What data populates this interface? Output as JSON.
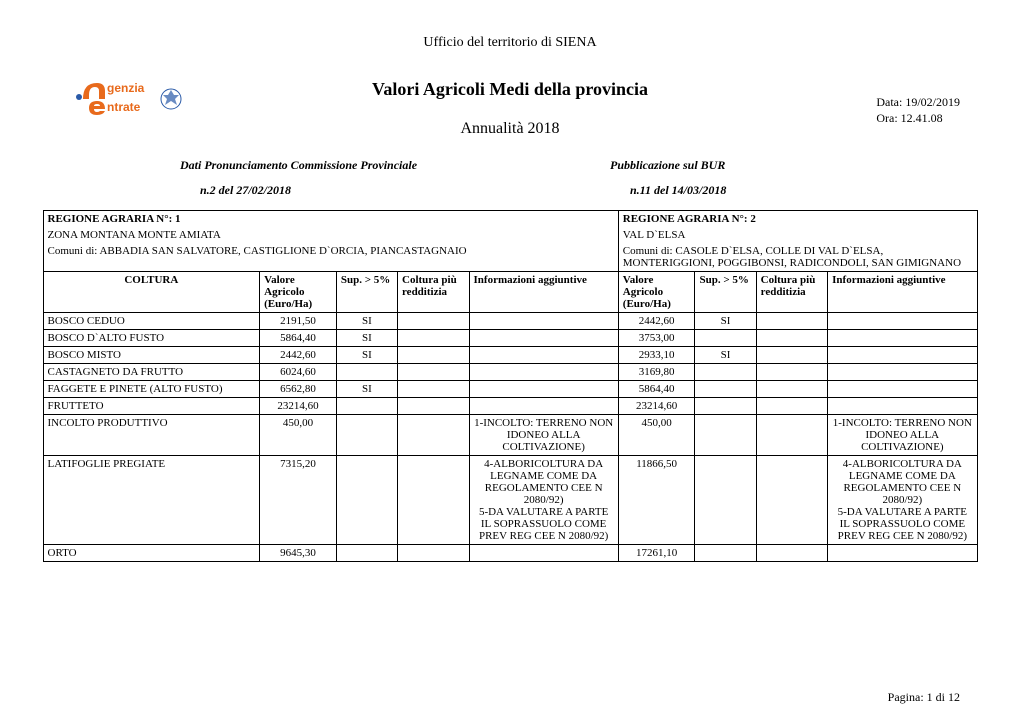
{
  "header": {
    "office": "Ufficio del territorio di  SIENA",
    "title": "Valori Agricoli Medi della provincia",
    "subtitle": "Annualità  2018",
    "date": "Data: 19/02/2019",
    "time": "Ora: 12.41.08"
  },
  "logo": {
    "text_top": "genzia",
    "text_bottom": "ntrate",
    "text_color": "#e86a1c",
    "emblem_color": "#2a5aa8"
  },
  "meta": {
    "left_label": "Dati Pronunciamento Commissione Provinciale",
    "left_value": "n.2 del  27/02/2018",
    "right_label": "Pubblicazione sul BUR",
    "right_value": "n.11  del 14/03/2018"
  },
  "region1": {
    "title": "REGIONE AGRARIA N°:  1",
    "zone": " ZONA MONTANA MONTE AMIATA",
    "comuni": "Comuni di: ABBADIA SAN SALVATORE, CASTIGLIONE D`ORCIA, PIANCASTAGNAIO"
  },
  "region2": {
    "title": "REGIONE AGRARIA N°: 2",
    "zone": " VAL D`ELSA",
    "comuni": "Comuni di: CASOLE D`ELSA, COLLE DI VAL D`ELSA, MONTERIGGIONI, POGGIBONSI, RADICONDOLI, SAN GIMIGNANO"
  },
  "columns": {
    "coltura": "COLTURA",
    "valore": "Valore Agricolo (Euro/Ha)",
    "sup": "Sup. > 5%",
    "redditizia": "Coltura più redditizia",
    "info": "Informazioni aggiuntive"
  },
  "rows": [
    {
      "coltura": "BOSCO CEDUO",
      "v1": "2191,50",
      "s1": "SI",
      "r1": "",
      "i1": "",
      "v2": "2442,60",
      "s2": "SI",
      "r2": "",
      "i2": ""
    },
    {
      "coltura": "BOSCO D`ALTO FUSTO",
      "v1": "5864,40",
      "s1": "SI",
      "r1": "",
      "i1": "",
      "v2": "3753,00",
      "s2": "",
      "r2": "",
      "i2": ""
    },
    {
      "coltura": "BOSCO MISTO",
      "v1": "2442,60",
      "s1": "SI",
      "r1": "",
      "i1": "",
      "v2": "2933,10",
      "s2": "SI",
      "r2": "",
      "i2": ""
    },
    {
      "coltura": "CASTAGNETO DA FRUTTO",
      "v1": "6024,60",
      "s1": "",
      "r1": "",
      "i1": "",
      "v2": "3169,80",
      "s2": "",
      "r2": "",
      "i2": ""
    },
    {
      "coltura": "FAGGETE E PINETE (ALTO FUSTO)",
      "v1": "6562,80",
      "s1": "SI",
      "r1": "",
      "i1": "",
      "v2": "5864,40",
      "s2": "",
      "r2": "",
      "i2": ""
    },
    {
      "coltura": "FRUTTETO",
      "v1": "23214,60",
      "s1": "",
      "r1": "",
      "i1": "",
      "v2": "23214,60",
      "s2": "",
      "r2": "",
      "i2": ""
    },
    {
      "coltura": "INCOLTO PRODUTTIVO",
      "v1": "450,00",
      "s1": "",
      "r1": "",
      "i1": "1-INCOLTO: TERRENO NON IDONEO ALLA COLTIVAZIONE)",
      "v2": "450,00",
      "s2": "",
      "r2": "",
      "i2": "1-INCOLTO: TERRENO NON IDONEO ALLA COLTIVAZIONE)"
    },
    {
      "coltura": "LATIFOGLIE PREGIATE",
      "v1": "7315,20",
      "s1": "",
      "r1": "",
      "i1": "4-ALBORICOLTURA DA LEGNAME COME DA REGOLAMENTO CEE N 2080/92)\n5-DA VALUTARE A PARTE IL SOPRASSUOLO COME PREV REG CEE N 2080/92)",
      "v2": "11866,50",
      "s2": "",
      "r2": "",
      "i2": "4-ALBORICOLTURA DA LEGNAME COME DA REGOLAMENTO CEE N 2080/92)\n5-DA VALUTARE A PARTE IL SOPRASSUOLO COME PREV REG CEE N 2080/92)"
    },
    {
      "coltura": "ORTO",
      "v1": "9645,30",
      "s1": "",
      "r1": "",
      "i1": "",
      "v2": "17261,10",
      "s2": "",
      "r2": "",
      "i2": ""
    }
  ],
  "footer": {
    "page": "Pagina: 1 di 12"
  }
}
